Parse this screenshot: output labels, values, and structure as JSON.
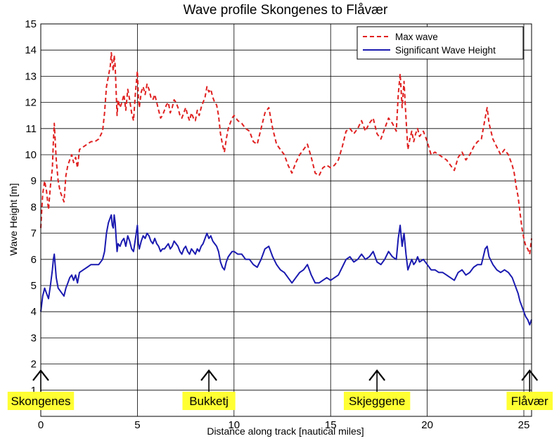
{
  "chart_data": {
    "type": "line",
    "title": "Wave profile Skongenes to Flåvær",
    "xlabel": "Distance along track [nautical miles]",
    "ylabel": "Wave Height [m]",
    "xlim": [
      0,
      25.4
    ],
    "ylim": [
      0,
      15
    ],
    "xticks": [
      0,
      5,
      10,
      15,
      20,
      25
    ],
    "yticks": [
      1,
      2,
      3,
      4,
      5,
      6,
      7,
      8,
      9,
      10,
      11,
      12,
      13,
      14,
      15
    ],
    "grid": true,
    "legend_position": "top-right",
    "series": [
      {
        "name": "Max wave",
        "color": "#e02020",
        "style": "dashed",
        "x": [
          0.0,
          0.1,
          0.2,
          0.3,
          0.4,
          0.5,
          0.6,
          0.65,
          0.7,
          0.8,
          0.9,
          1.0,
          1.1,
          1.2,
          1.3,
          1.4,
          1.5,
          1.6,
          1.7,
          1.8,
          1.9,
          2.0,
          2.2,
          2.4,
          2.6,
          2.8,
          3.0,
          3.2,
          3.3,
          3.4,
          3.5,
          3.6,
          3.65,
          3.7,
          3.75,
          3.8,
          3.85,
          3.9,
          3.95,
          4.0,
          4.1,
          4.2,
          4.3,
          4.4,
          4.5,
          4.6,
          4.7,
          4.8,
          4.9,
          5.0,
          5.05,
          5.1,
          5.2,
          5.3,
          5.4,
          5.5,
          5.6,
          5.7,
          5.8,
          5.9,
          6.0,
          6.1,
          6.2,
          6.3,
          6.4,
          6.5,
          6.6,
          6.7,
          6.8,
          6.9,
          7.0,
          7.1,
          7.2,
          7.3,
          7.4,
          7.5,
          7.6,
          7.7,
          7.8,
          7.9,
          8.0,
          8.1,
          8.2,
          8.3,
          8.4,
          8.5,
          8.6,
          8.7,
          8.8,
          8.9,
          9.0,
          9.1,
          9.2,
          9.3,
          9.4,
          9.5,
          9.6,
          9.7,
          9.8,
          9.9,
          10.0,
          10.2,
          10.4,
          10.6,
          10.8,
          11.0,
          11.2,
          11.4,
          11.6,
          11.8,
          12.0,
          12.2,
          12.4,
          12.6,
          12.8,
          13.0,
          13.2,
          13.4,
          13.6,
          13.8,
          14.0,
          14.2,
          14.4,
          14.6,
          14.8,
          15.0,
          15.2,
          15.4,
          15.6,
          15.8,
          16.0,
          16.2,
          16.4,
          16.6,
          16.8,
          17.0,
          17.2,
          17.4,
          17.6,
          17.8,
          18.0,
          18.2,
          18.4,
          18.5,
          18.6,
          18.7,
          18.8,
          18.9,
          19.0,
          19.1,
          19.2,
          19.3,
          19.4,
          19.5,
          19.6,
          19.8,
          20.0,
          20.2,
          20.4,
          20.6,
          20.8,
          21.0,
          21.2,
          21.4,
          21.6,
          21.8,
          22.0,
          22.2,
          22.4,
          22.6,
          22.8,
          22.9,
          23.0,
          23.1,
          23.2,
          23.4,
          23.6,
          23.8,
          24.0,
          24.2,
          24.4,
          24.5,
          24.6,
          24.7,
          24.8,
          24.9,
          25.0,
          25.1,
          25.2,
          25.3,
          25.4
        ],
        "values": [
          7.2,
          8.5,
          9.0,
          8.6,
          7.9,
          8.8,
          9.5,
          10.5,
          11.2,
          9.8,
          9.0,
          8.6,
          8.4,
          8.2,
          9.2,
          9.6,
          9.8,
          10.0,
          9.7,
          9.9,
          9.5,
          10.2,
          10.3,
          10.4,
          10.5,
          10.5,
          10.6,
          10.9,
          11.6,
          12.6,
          13.0,
          13.4,
          13.9,
          13.5,
          13.2,
          13.8,
          13.4,
          12.4,
          11.5,
          12.1,
          11.8,
          12.0,
          12.3,
          11.7,
          12.5,
          12.1,
          11.6,
          11.3,
          12.4,
          13.2,
          12.2,
          11.8,
          12.4,
          12.6,
          12.3,
          12.7,
          12.5,
          12.2,
          12.1,
          12.3,
          12.0,
          11.7,
          11.4,
          11.5,
          11.7,
          11.9,
          12.0,
          11.6,
          11.8,
          12.1,
          12.0,
          11.8,
          11.5,
          11.4,
          11.6,
          11.8,
          11.5,
          11.3,
          11.6,
          11.4,
          11.3,
          11.7,
          11.5,
          11.8,
          12.0,
          12.2,
          12.6,
          12.4,
          12.5,
          12.2,
          12.0,
          11.9,
          11.5,
          10.8,
          10.4,
          10.1,
          10.6,
          11.0,
          11.2,
          11.4,
          11.5,
          11.3,
          11.2,
          11.0,
          10.9,
          10.5,
          10.4,
          11.0,
          11.6,
          11.8,
          11.0,
          10.4,
          10.2,
          10.0,
          9.6,
          9.3,
          9.7,
          10.0,
          10.2,
          10.4,
          9.9,
          9.3,
          9.2,
          9.5,
          9.6,
          9.5,
          9.6,
          9.8,
          10.3,
          10.9,
          11.0,
          10.8,
          11.0,
          11.3,
          10.9,
          11.2,
          11.4,
          10.8,
          10.6,
          11.0,
          11.4,
          11.2,
          10.9,
          12.3,
          13.1,
          11.8,
          12.8,
          11.4,
          10.2,
          10.6,
          10.9,
          10.5,
          10.8,
          11.0,
          10.7,
          10.9,
          10.5,
          10.0,
          10.1,
          10.0,
          9.9,
          9.8,
          9.6,
          9.4,
          9.9,
          10.1,
          9.8,
          10.0,
          10.3,
          10.5,
          10.6,
          11.0,
          11.4,
          11.8,
          11.2,
          10.6,
          10.3,
          10.0,
          10.2,
          10.0,
          9.6,
          9.3,
          8.8,
          8.4,
          7.8,
          7.2,
          6.8,
          6.5,
          6.4,
          6.2,
          6.8
        ]
      },
      {
        "name": "Significant Wave Height",
        "color": "#1a1ab0",
        "style": "solid",
        "x": [
          0.0,
          0.1,
          0.2,
          0.3,
          0.4,
          0.5,
          0.6,
          0.65,
          0.7,
          0.8,
          0.9,
          1.0,
          1.1,
          1.2,
          1.3,
          1.4,
          1.5,
          1.6,
          1.7,
          1.8,
          1.9,
          2.0,
          2.2,
          2.4,
          2.6,
          2.8,
          3.0,
          3.2,
          3.3,
          3.4,
          3.5,
          3.6,
          3.65,
          3.7,
          3.75,
          3.8,
          3.85,
          3.9,
          3.95,
          4.0,
          4.1,
          4.2,
          4.3,
          4.4,
          4.5,
          4.6,
          4.7,
          4.8,
          4.9,
          5.0,
          5.05,
          5.1,
          5.2,
          5.3,
          5.4,
          5.5,
          5.6,
          5.7,
          5.8,
          5.9,
          6.0,
          6.1,
          6.2,
          6.3,
          6.4,
          6.5,
          6.6,
          6.7,
          6.8,
          6.9,
          7.0,
          7.1,
          7.2,
          7.3,
          7.4,
          7.5,
          7.6,
          7.7,
          7.8,
          7.9,
          8.0,
          8.1,
          8.2,
          8.3,
          8.4,
          8.5,
          8.6,
          8.7,
          8.8,
          8.9,
          9.0,
          9.1,
          9.2,
          9.3,
          9.4,
          9.5,
          9.6,
          9.7,
          9.8,
          9.9,
          10.0,
          10.2,
          10.4,
          10.6,
          10.8,
          11.0,
          11.2,
          11.4,
          11.6,
          11.8,
          12.0,
          12.2,
          12.4,
          12.6,
          12.8,
          13.0,
          13.2,
          13.4,
          13.6,
          13.8,
          14.0,
          14.2,
          14.4,
          14.6,
          14.8,
          15.0,
          15.2,
          15.4,
          15.6,
          15.8,
          16.0,
          16.2,
          16.4,
          16.6,
          16.8,
          17.0,
          17.2,
          17.4,
          17.6,
          17.8,
          18.0,
          18.2,
          18.4,
          18.5,
          18.6,
          18.7,
          18.8,
          18.9,
          19.0,
          19.1,
          19.2,
          19.3,
          19.4,
          19.5,
          19.6,
          19.8,
          20.0,
          20.2,
          20.4,
          20.6,
          20.8,
          21.0,
          21.2,
          21.4,
          21.6,
          21.8,
          22.0,
          22.2,
          22.4,
          22.6,
          22.8,
          22.9,
          23.0,
          23.1,
          23.2,
          23.4,
          23.6,
          23.8,
          24.0,
          24.2,
          24.4,
          24.5,
          24.6,
          24.7,
          24.8,
          24.9,
          25.0,
          25.1,
          25.2,
          25.3,
          25.4
        ],
        "values": [
          4.0,
          4.6,
          4.9,
          4.7,
          4.5,
          5.0,
          5.6,
          6.0,
          6.2,
          5.3,
          4.9,
          4.8,
          4.7,
          4.6,
          4.9,
          5.1,
          5.3,
          5.4,
          5.2,
          5.4,
          5.1,
          5.5,
          5.6,
          5.7,
          5.8,
          5.8,
          5.8,
          6.0,
          6.3,
          7.0,
          7.4,
          7.6,
          7.7,
          7.3,
          7.2,
          7.7,
          7.4,
          6.8,
          6.3,
          6.6,
          6.5,
          6.7,
          6.8,
          6.5,
          6.9,
          6.7,
          6.4,
          6.3,
          6.8,
          7.3,
          6.6,
          6.4,
          6.7,
          6.9,
          6.8,
          7.0,
          6.9,
          6.7,
          6.6,
          6.8,
          6.6,
          6.5,
          6.3,
          6.4,
          6.4,
          6.5,
          6.6,
          6.4,
          6.5,
          6.7,
          6.6,
          6.5,
          6.3,
          6.2,
          6.4,
          6.5,
          6.3,
          6.2,
          6.4,
          6.3,
          6.2,
          6.4,
          6.3,
          6.5,
          6.6,
          6.8,
          7.0,
          6.8,
          6.9,
          6.7,
          6.6,
          6.5,
          6.3,
          5.9,
          5.7,
          5.6,
          5.9,
          6.1,
          6.2,
          6.3,
          6.3,
          6.2,
          6.2,
          6.0,
          6.0,
          5.8,
          5.7,
          6.0,
          6.4,
          6.5,
          6.1,
          5.8,
          5.6,
          5.5,
          5.3,
          5.1,
          5.3,
          5.5,
          5.6,
          5.8,
          5.4,
          5.1,
          5.1,
          5.2,
          5.3,
          5.2,
          5.3,
          5.4,
          5.7,
          6.0,
          6.1,
          5.9,
          6.0,
          6.2,
          6.0,
          6.1,
          6.3,
          5.9,
          5.8,
          6.0,
          6.3,
          6.1,
          6.0,
          6.8,
          7.3,
          6.5,
          7.0,
          6.2,
          5.6,
          5.8,
          6.0,
          5.8,
          5.9,
          6.1,
          5.9,
          6.0,
          5.8,
          5.6,
          5.6,
          5.5,
          5.5,
          5.4,
          5.3,
          5.2,
          5.5,
          5.6,
          5.4,
          5.5,
          5.7,
          5.8,
          5.8,
          6.1,
          6.4,
          6.5,
          6.1,
          5.8,
          5.6,
          5.5,
          5.6,
          5.5,
          5.3,
          5.1,
          4.9,
          4.7,
          4.4,
          4.2,
          4.0,
          3.8,
          3.7,
          3.5,
          3.7
        ]
      }
    ],
    "places": [
      {
        "label": "Skongenes",
        "x": 0
      },
      {
        "label": "Bukketj",
        "x": 8.7
      },
      {
        "label": "Skjeggene",
        "x": 17.4
      },
      {
        "label": "Flåvær",
        "x": 25.3
      }
    ],
    "arrow_top_value": 1.75
  },
  "colors": {
    "place_label_bg": "#ffff33",
    "grid": "#000000",
    "frame": "#000000"
  }
}
